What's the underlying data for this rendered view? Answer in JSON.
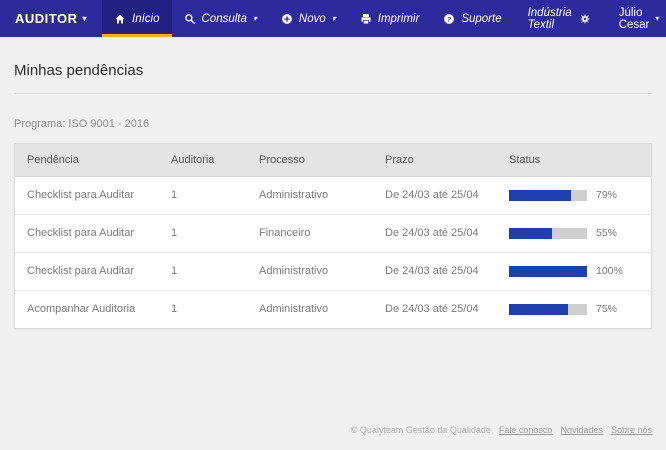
{
  "navbar": {
    "brand": "AUDITOR",
    "items": [
      {
        "label": "Início",
        "icon": "home-icon"
      },
      {
        "label": "Consulta",
        "icon": "search-icon",
        "caret": true
      },
      {
        "label": "Novo",
        "icon": "plus-circle-icon",
        "caret": true
      },
      {
        "label": "Imprimir",
        "icon": "printer-icon"
      },
      {
        "label": "Suporte",
        "icon": "question-circle-icon"
      }
    ],
    "company": "Indústria Textil",
    "user": "Júlio Cesar"
  },
  "page": {
    "title": "Minhas pendências",
    "program_label": "Programa: ISO 9001 - 2016"
  },
  "table": {
    "headers": [
      "Pendência",
      "Auditoria",
      "Processo",
      "Prazo",
      "Status"
    ],
    "rows": [
      {
        "pendencia": "Checklist para Auditar",
        "auditoria": "1",
        "processo": "Administrativo",
        "prazo": "De 24/03 até 25/04",
        "status_pct": 79,
        "status_label": "79%"
      },
      {
        "pendencia": "Checklist para Auditar",
        "auditoria": "1",
        "processo": "Financeiro",
        "prazo": "De 24/03 até 25/04",
        "status_pct": 55,
        "status_label": "55%"
      },
      {
        "pendencia": "Checklist para Auditar",
        "auditoria": "1",
        "processo": "Administrativo",
        "prazo": "De 24/03 até 25/04",
        "status_pct": 100,
        "status_label": "100%"
      },
      {
        "pendencia": "Acompanhar Auditoria",
        "auditoria": "1",
        "processo": "Administrativo",
        "prazo": "De 24/03 até 25/04",
        "status_pct": 75,
        "status_label": "75%"
      }
    ]
  },
  "footer": {
    "copyright": "© Qualyteam Gestão da Qualidade",
    "links": [
      "Fale conosco",
      "Novidades",
      "Sobre nós"
    ]
  },
  "colors": {
    "navbar-bg": "#2d2a9e",
    "navbar-active-bg": "#232180",
    "accent-yellow": "#f0b400",
    "progress-fill": "#1e3fae",
    "track-bg": "#cfcfcf",
    "thead-bg": "#e4e4e4",
    "page-bg": "#f0f0f0"
  }
}
